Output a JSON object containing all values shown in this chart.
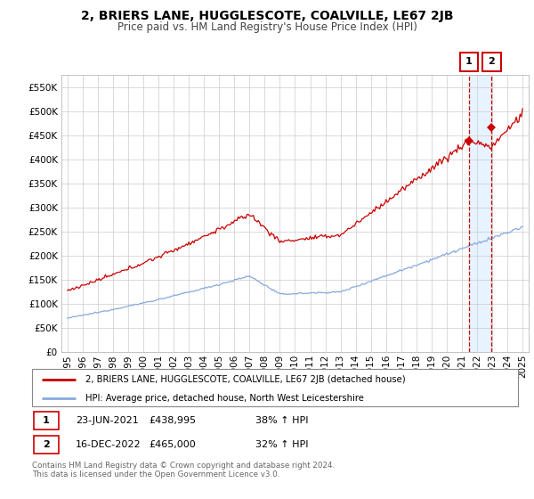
{
  "title": "2, BRIERS LANE, HUGGLESCOTE, COALVILLE, LE67 2JB",
  "subtitle": "Price paid vs. HM Land Registry's House Price Index (HPI)",
  "ylim": [
    0,
    575000
  ],
  "yticks": [
    0,
    50000,
    100000,
    150000,
    200000,
    250000,
    300000,
    350000,
    400000,
    450000,
    500000,
    550000
  ],
  "xtick_years": [
    1995,
    1996,
    1997,
    1998,
    1999,
    2000,
    2001,
    2002,
    2003,
    2004,
    2005,
    2006,
    2007,
    2008,
    2009,
    2010,
    2011,
    2012,
    2013,
    2014,
    2015,
    2016,
    2017,
    2018,
    2019,
    2020,
    2021,
    2022,
    2023,
    2024,
    2025
  ],
  "property_color": "#cc0000",
  "hpi_color": "#88aadd",
  "shade_color": "#ddeeff",
  "sale1_x": 2021.47,
  "sale1_y": 438995,
  "sale2_x": 2022.96,
  "sale2_y": 465000,
  "legend_property": "2, BRIERS LANE, HUGGLESCOTE, COALVILLE, LE67 2JB (detached house)",
  "legend_hpi": "HPI: Average price, detached house, North West Leicestershire",
  "table_row1": [
    "1",
    "23-JUN-2021",
    "£438,995",
    "38% ↑ HPI"
  ],
  "table_row2": [
    "2",
    "16-DEC-2022",
    "£465,000",
    "32% ↑ HPI"
  ],
  "footer": "Contains HM Land Registry data © Crown copyright and database right 2024.\nThis data is licensed under the Open Government Licence v3.0.",
  "background_color": "#ffffff",
  "grid_color": "#cccccc",
  "title_fontsize": 10,
  "subtitle_fontsize": 8.5,
  "tick_fontsize": 7.5
}
